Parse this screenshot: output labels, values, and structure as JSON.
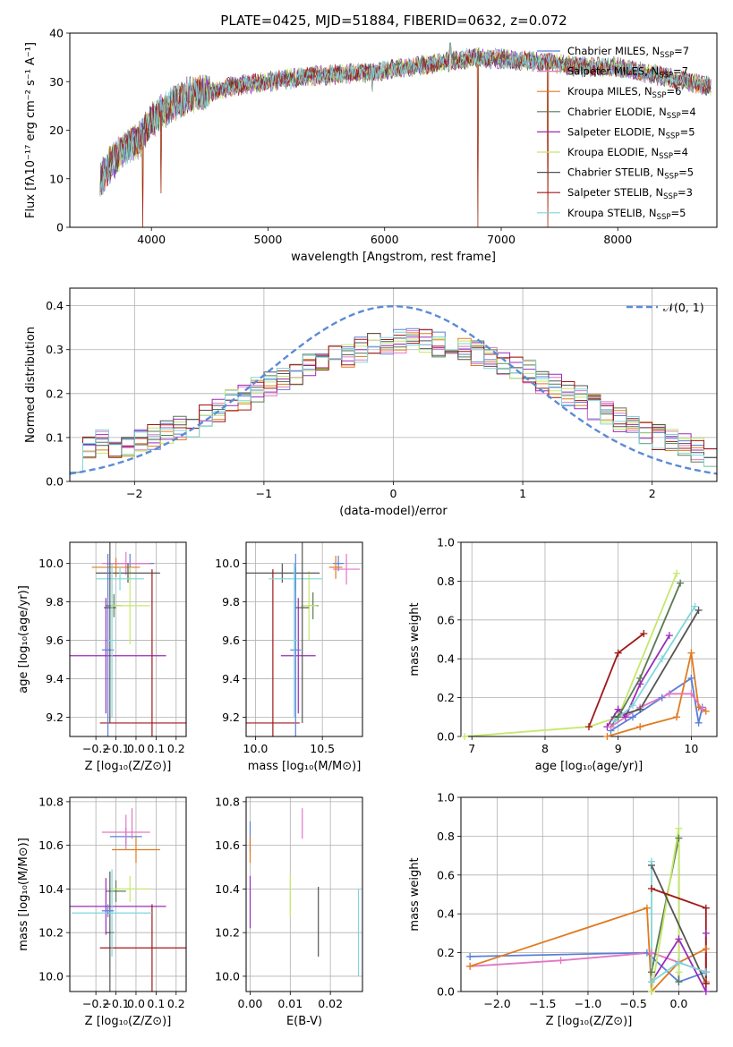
{
  "colors": {
    "Chabrier MILES": "#5b7fd9",
    "Salpeter MILES": "#e377c2",
    "Kroupa MILES": "#e07b1f",
    "Chabrier ELODIE": "#5a7a52",
    "Salpeter ELODIE": "#9a2bb8",
    "Kroupa ELODIE": "#c5e86a",
    "Chabrier STELIB": "#555555",
    "Salpeter STELIB": "#a01818",
    "Kroupa STELIB": "#7fd6dc",
    "gaussian": "#5b8bd6"
  },
  "chart_data": [
    {
      "id": "spectrum",
      "type": "line",
      "title": "PLATE=0425, MJD=51884, FIBERID=0632, z=0.072",
      "xlabel": "wavelength [Angstrom, rest frame]",
      "ylabel": "Flux [fλ10⁻¹⁷ erg cm⁻² s⁻¹ A⁻¹]",
      "xlim": [
        3300,
        8850
      ],
      "ylim": [
        0,
        40
      ],
      "xticks": [
        4000,
        5000,
        6000,
        7000,
        8000
      ],
      "yticks": [
        0,
        10,
        20,
        30,
        40
      ],
      "legend_position": "top-right",
      "legend": [
        {
          "label": "Chabrier MILES, N",
          "sub": "SSP",
          "rest": "=7"
        },
        {
          "label": "Salpeter MILES, N",
          "sub": "SSP",
          "rest": "=7"
        },
        {
          "label": "Kroupa MILES, N",
          "sub": "SSP",
          "rest": "=6"
        },
        {
          "label": "Chabrier ELODIE, N",
          "sub": "SSP",
          "rest": "=4"
        },
        {
          "label": "Salpeter ELODIE, N",
          "sub": "SSP",
          "rest": "=5"
        },
        {
          "label": "Kroupa ELODIE, N",
          "sub": "SSP",
          "rest": "=4"
        },
        {
          "label": "Chabrier STELIB, N",
          "sub": "SSP",
          "rest": "=5"
        },
        {
          "label": "Salpeter STELIB, N",
          "sub": "SSP",
          "rest": "=3"
        },
        {
          "label": "Kroupa STELIB, N",
          "sub": "SSP",
          "rest": "=5"
        }
      ],
      "series_order": [
        "Chabrier MILES",
        "Salpeter MILES",
        "Kroupa MILES",
        "Chabrier ELODIE",
        "Salpeter ELODIE",
        "Kroupa ELODIE",
        "Chabrier STELIB",
        "Salpeter STELIB",
        "Kroupa STELIB"
      ],
      "continuum": {
        "x": [
          3560,
          3650,
          3800,
          3900,
          4000,
          4100,
          4300,
          4500,
          4800,
          5000,
          5300,
          5600,
          5900,
          6200,
          6500,
          6800,
          7100,
          7400,
          7700,
          8000,
          8300,
          8800
        ],
        "y": [
          10,
          13,
          17,
          18,
          22,
          24,
          27,
          28,
          29.5,
          30,
          31,
          31.5,
          32,
          33,
          34,
          35,
          34.5,
          34,
          33,
          33,
          31.5,
          29
        ]
      },
      "spikes": [
        {
          "x": 3925,
          "y": 0
        },
        {
          "x": 4080,
          "y": 7
        },
        {
          "x": 5895,
          "y": 28
        },
        {
          "x": 6800,
          "y": 0
        },
        {
          "x": 7400,
          "y": 0
        },
        {
          "x": 6563,
          "y": 38
        }
      ]
    },
    {
      "id": "residuals",
      "type": "histogram",
      "xlabel": "(data-model)/error",
      "ylabel": "Normed distribution",
      "xlim": [
        -2.5,
        2.5
      ],
      "ylim": [
        0,
        0.44
      ],
      "xticks": [
        -2,
        -1,
        0,
        1,
        2
      ],
      "yticks": [
        0.0,
        0.1,
        0.2,
        0.3,
        0.4
      ],
      "legend_position": "top-right",
      "legend": "𝒩(0, 1)",
      "bin_edges_range": [
        -2.5,
        2.5
      ],
      "bins": 50,
      "envelope": [
        0.05,
        0.08,
        0.09,
        0.08,
        0.08,
        0.09,
        0.1,
        0.11,
        0.12,
        0.13,
        0.15,
        0.16,
        0.18,
        0.19,
        0.21,
        0.22,
        0.23,
        0.24,
        0.26,
        0.27,
        0.28,
        0.29,
        0.3,
        0.31,
        0.31,
        0.32,
        0.32,
        0.32,
        0.31,
        0.31,
        0.3,
        0.29,
        0.28,
        0.27,
        0.26,
        0.25,
        0.23,
        0.22,
        0.2,
        0.19,
        0.17,
        0.16,
        0.14,
        0.12,
        0.11,
        0.1,
        0.09,
        0.08,
        0.07,
        0.06
      ],
      "gaussian": {
        "mean": 0,
        "sigma": 1
      }
    },
    {
      "id": "age_vs_Z",
      "type": "errorbar",
      "xlabel": "Z [log₁₀(Z/Z⊙)]",
      "ylabel": "age  [log₁₀(age/yr)]",
      "xlim": [
        -0.33,
        0.25
      ],
      "ylim": [
        9.1,
        10.11
      ],
      "xticks": [
        -0.2,
        -0.1,
        0.0,
        0.1,
        0.2
      ],
      "yticks": [
        9.2,
        9.4,
        9.6,
        9.8,
        10.0
      ],
      "points": [
        {
          "series": "Chabrier MILES",
          "x": -0.03,
          "xerr": 0.12,
          "y": 10.0,
          "yerr": 0.05
        },
        {
          "series": "Salpeter MILES",
          "x": -0.05,
          "xerr": 0.12,
          "y": 10.0,
          "yerr": 0.06
        },
        {
          "series": "Kroupa MILES",
          "x": -0.1,
          "xerr": 0.12,
          "y": 9.98,
          "yerr": 0.05
        },
        {
          "series": "Chabrier ELODIE",
          "x": -0.11,
          "xerr": 0.04,
          "y": 9.78,
          "yerr": 0.06
        },
        {
          "series": "Salpeter ELODIE",
          "x": -0.15,
          "xerr": 0.3,
          "y": 9.52,
          "yerr": 0.3
        },
        {
          "series": "Kroupa ELODIE",
          "x": -0.03,
          "xerr": 0.1,
          "y": 9.78,
          "yerr": 0.2
        },
        {
          "series": "Chabrier STELIB",
          "x": -0.04,
          "xerr": 0.16,
          "y": 9.95,
          "yerr": 0.05
        },
        {
          "series": "Salpeter STELIB",
          "x": 0.08,
          "xerr": 0.26,
          "y": 9.17,
          "yerr": 0.8
        },
        {
          "series": "Kroupa STELIB",
          "x": -0.08,
          "xerr": 0.12,
          "y": 9.92,
          "yerr": 0.06
        },
        {
          "series": "Chabrier MILES",
          "x": -0.14,
          "xerr": 0.03,
          "y": 9.55,
          "yerr": 0.5
        },
        {
          "series": "Chabrier STELIB",
          "x": -0.13,
          "xerr": 0.03,
          "y": 9.77,
          "yerr": 0.6
        },
        {
          "series": "Kroupa STELIB",
          "x": -0.12,
          "xerr": 0.02,
          "y": 9.6,
          "yerr": 0.4
        }
      ]
    },
    {
      "id": "age_vs_mass",
      "type": "errorbar",
      "xlabel": "mass [log₁₀(M/M⊙)]",
      "ylabel": "",
      "xlim": [
        9.93,
        10.8
      ],
      "ylim": [
        9.1,
        10.11
      ],
      "xticks": [
        10.0,
        10.5
      ],
      "yticks": [
        9.2,
        9.4,
        9.6,
        9.8,
        10.0
      ],
      "points": [
        {
          "series": "Chabrier MILES",
          "x": 10.62,
          "xerr": 0.04,
          "y": 10.0,
          "yerr": 0.04
        },
        {
          "series": "Salpeter MILES",
          "x": 10.68,
          "xerr": 0.1,
          "y": 9.97,
          "yerr": 0.08
        },
        {
          "series": "Kroupa MILES",
          "x": 10.6,
          "xerr": 0.05,
          "y": 9.98,
          "yerr": 0.06
        },
        {
          "series": "Chabrier ELODIE",
          "x": 10.43,
          "xerr": 0.04,
          "y": 9.78,
          "yerr": 0.07
        },
        {
          "series": "Salpeter ELODIE",
          "x": 10.32,
          "xerr": 0.13,
          "y": 9.52,
          "yerr": 0.3
        },
        {
          "series": "Kroupa ELODIE",
          "x": 10.4,
          "xerr": 0.06,
          "y": 9.78,
          "yerr": 0.18
        },
        {
          "series": "Chabrier STELIB",
          "x": 10.2,
          "xerr": 0.28,
          "y": 9.95,
          "yerr": 0.05
        },
        {
          "series": "Salpeter STELIB",
          "x": 10.13,
          "xerr": 0.2,
          "y": 9.17,
          "yerr": 0.8
        },
        {
          "series": "Kroupa STELIB",
          "x": 10.3,
          "xerr": 0.2,
          "y": 9.92,
          "yerr": 0.06
        },
        {
          "series": "Chabrier MILES",
          "x": 10.3,
          "xerr": 0.04,
          "y": 9.55,
          "yerr": 0.5
        },
        {
          "series": "Chabrier STELIB",
          "x": 10.35,
          "xerr": 0.05,
          "y": 9.77,
          "yerr": 0.6
        },
        {
          "series": "Kroupa STELIB",
          "x": 10.29,
          "xerr": 0.03,
          "y": 9.6,
          "yerr": 0.4
        }
      ]
    },
    {
      "id": "weight_vs_age",
      "type": "line",
      "xlabel": "age  [log₁₀(age/yr)]",
      "ylabel": "mass weight",
      "xlim": [
        6.85,
        10.35
      ],
      "ylim": [
        0,
        1
      ],
      "xticks": [
        7,
        8,
        9,
        10
      ],
      "yticks": [
        0.0,
        0.2,
        0.4,
        0.6,
        0.8,
        1.0
      ],
      "series": [
        {
          "name": "Kroupa ELODIE",
          "x": [
            6.9,
            8.6,
            9.0,
            9.8
          ],
          "y": [
            0.0,
            0.05,
            0.1,
            0.84
          ]
        },
        {
          "name": "Salpeter STELIB",
          "x": [
            8.6,
            9.0,
            9.35
          ],
          "y": [
            0.05,
            0.43,
            0.53
          ]
        },
        {
          "name": "Salpeter ELODIE",
          "x": [
            8.85,
            9.0,
            9.1,
            9.3,
            9.7
          ],
          "y": [
            0.05,
            0.14,
            0.1,
            0.27,
            0.52
          ]
        },
        {
          "name": "Chabrier ELODIE",
          "x": [
            8.9,
            9.0,
            9.3,
            9.85
          ],
          "y": [
            0.05,
            0.1,
            0.3,
            0.79
          ]
        },
        {
          "name": "Chabrier MILES",
          "x": [
            8.9,
            9.2,
            9.6,
            10.0,
            10.1,
            10.15
          ],
          "y": [
            0.03,
            0.1,
            0.2,
            0.3,
            0.07,
            0.15
          ]
        },
        {
          "name": "Kroupa MILES",
          "x": [
            8.85,
            9.3,
            9.8,
            10.0,
            10.1,
            10.2
          ],
          "y": [
            0.0,
            0.05,
            0.1,
            0.43,
            0.15,
            0.13
          ]
        },
        {
          "name": "Salpeter MILES",
          "x": [
            8.9,
            9.3,
            9.7,
            10.0,
            10.15
          ],
          "y": [
            0.05,
            0.15,
            0.22,
            0.22,
            0.14
          ]
        },
        {
          "name": "Chabrier STELIB",
          "x": [
            8.95,
            9.3,
            10.1
          ],
          "y": [
            0.1,
            0.14,
            0.65
          ]
        },
        {
          "name": "Kroupa STELIB",
          "x": [
            8.95,
            9.2,
            9.6,
            10.05
          ],
          "y": [
            0.08,
            0.16,
            0.4,
            0.67
          ]
        }
      ]
    },
    {
      "id": "mass_vs_Z",
      "type": "errorbar",
      "xlabel": "Z [log₁₀(Z/Z⊙)]",
      "ylabel": "mass [log₁₀(M/M⊙)]",
      "xlim": [
        -0.33,
        0.25
      ],
      "ylim": [
        9.93,
        10.82
      ],
      "xticks": [
        -0.2,
        -0.1,
        0.0,
        0.1,
        0.2
      ],
      "yticks": [
        10.0,
        10.2,
        10.4,
        10.6,
        10.8
      ],
      "points": [
        {
          "series": "Chabrier MILES",
          "x": -0.05,
          "xerr": 0.08,
          "y": 10.64,
          "yerr": 0.04
        },
        {
          "series": "Salpeter MILES",
          "x": -0.05,
          "xerr": 0.12,
          "y": 10.66,
          "yerr": 0.08
        },
        {
          "series": "Kroupa MILES",
          "x": 0.0,
          "xerr": 0.12,
          "y": 10.58,
          "yerr": 0.06
        },
        {
          "series": "Chabrier ELODIE",
          "x": -0.1,
          "xerr": 0.05,
          "y": 10.39,
          "yerr": 0.05
        },
        {
          "series": "Salpeter ELODIE",
          "x": -0.15,
          "xerr": 0.3,
          "y": 10.32,
          "yerr": 0.13
        },
        {
          "series": "Kroupa ELODIE",
          "x": -0.03,
          "xerr": 0.1,
          "y": 10.4,
          "yerr": 0.06
        },
        {
          "series": "Chabrier STELIB",
          "x": -0.13,
          "xerr": 0.02,
          "y": 10.2,
          "yerr": 0.28
        },
        {
          "series": "Salpeter STELIB",
          "x": 0.08,
          "xerr": 0.26,
          "y": 10.13,
          "yerr": 0.2
        },
        {
          "series": "Kroupa STELIB",
          "x": -0.12,
          "xerr": 0.2,
          "y": 10.29,
          "yerr": 0.2
        },
        {
          "series": "Chabrier MILES",
          "x": -0.14,
          "xerr": 0.03,
          "y": 10.3,
          "yerr": 0.03
        },
        {
          "series": "Salpeter MILES",
          "x": -0.02,
          "xerr": 0.0,
          "y": 10.7,
          "yerr": 0.07
        }
      ]
    },
    {
      "id": "mass_vs_ebv",
      "type": "errorbar",
      "xlabel": "E(B-V)",
      "ylabel": "",
      "xlim": [
        -0.001,
        0.028
      ],
      "ylim": [
        9.93,
        10.82
      ],
      "xticks": [
        0.0,
        0.01,
        0.02
      ],
      "yticks": [
        10.0,
        10.2,
        10.4,
        10.6,
        10.8
      ],
      "points": [
        {
          "series": "Chabrier MILES",
          "x": 0.0,
          "y": 10.64,
          "yerr": 0.07
        },
        {
          "series": "Kroupa MILES",
          "x": 0.0,
          "y": 10.58,
          "yerr": 0.06
        },
        {
          "series": "Salpeter ELODIE",
          "x": 0.0,
          "y": 10.34,
          "yerr": 0.12
        },
        {
          "series": "Kroupa ELODIE",
          "x": 0.01,
          "y": 10.37,
          "yerr": 0.1
        },
        {
          "series": "Salpeter MILES",
          "x": 0.013,
          "y": 10.7,
          "yerr": 0.07
        },
        {
          "series": "Chabrier STELIB",
          "x": 0.017,
          "y": 10.25,
          "yerr": 0.16
        },
        {
          "series": "Kroupa STELIB",
          "x": 0.027,
          "y": 10.2,
          "yerr": 0.2
        }
      ]
    },
    {
      "id": "weight_vs_Z",
      "type": "line",
      "xlabel": "Z [log₁₀(Z/Z⊙)]",
      "ylabel": "mass weight",
      "xlim": [
        -2.4,
        0.42
      ],
      "ylim": [
        0,
        1
      ],
      "xticks": [
        -2.0,
        -1.5,
        -1.0,
        -0.5,
        0.0
      ],
      "yticks": [
        0.0,
        0.2,
        0.4,
        0.6,
        0.8,
        1.0
      ],
      "series": [
        {
          "name": "Chabrier MILES",
          "x": [
            -2.3,
            -0.35,
            0.0,
            0.3
          ],
          "y": [
            0.18,
            0.2,
            0.05,
            0.1
          ]
        },
        {
          "name": "Salpeter MILES",
          "x": [
            -2.3,
            -1.3,
            -0.3,
            0.0,
            0.3
          ],
          "y": [
            0.13,
            0.16,
            0.2,
            0.15,
            0.1
          ]
        },
        {
          "name": "Kroupa MILES",
          "x": [
            -2.3,
            -0.35,
            -0.3,
            0.0,
            0.3,
            0.3
          ],
          "y": [
            0.13,
            0.43,
            0.0,
            0.15,
            0.22,
            0.05
          ]
        },
        {
          "name": "Chabrier ELODIE",
          "x": [
            -0.3,
            0.0,
            0.0
          ],
          "y": [
            0.1,
            0.79,
            0.05
          ]
        },
        {
          "name": "Salpeter ELODIE",
          "x": [
            -0.3,
            0.0,
            0.3,
            0.3
          ],
          "y": [
            0.05,
            0.27,
            0.0,
            0.3
          ]
        },
        {
          "name": "Kroupa ELODIE",
          "x": [
            -0.3,
            0.0,
            0.0
          ],
          "y": [
            0.0,
            0.84,
            0.1
          ]
        },
        {
          "name": "Chabrier STELIB",
          "x": [
            -0.3,
            0.3,
            0.3
          ],
          "y": [
            0.65,
            0.04,
            0.1
          ]
        },
        {
          "name": "Salpeter STELIB",
          "x": [
            -0.3,
            0.3,
            0.3
          ],
          "y": [
            0.53,
            0.43,
            0.04
          ]
        },
        {
          "name": "Kroupa STELIB",
          "x": [
            -0.3,
            -0.3,
            0.0,
            0.3
          ],
          "y": [
            0.67,
            0.05,
            0.15,
            0.1
          ]
        }
      ]
    }
  ]
}
